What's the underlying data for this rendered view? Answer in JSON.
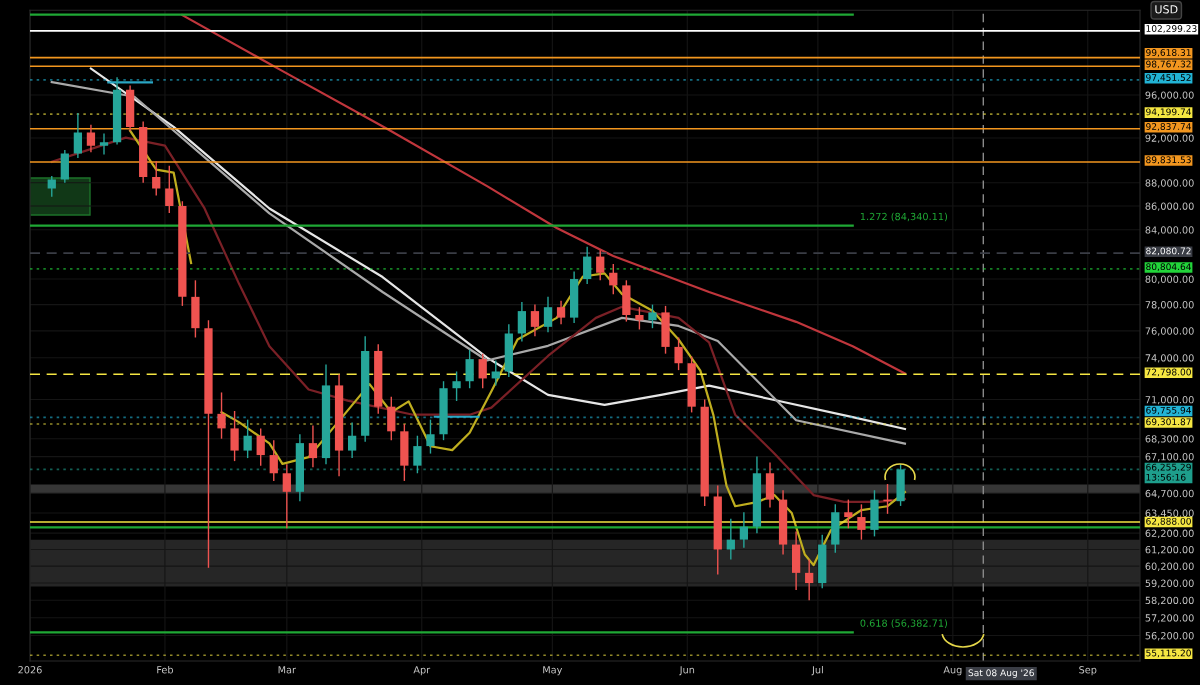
{
  "chart_data": {
    "type": "candlestick",
    "x": [
      "2026-01-06",
      "2026-01-09",
      "2026-01-12",
      "2026-01-15",
      "2026-01-18",
      "2026-01-21",
      "2026-01-24",
      "2026-01-27",
      "2026-01-30",
      "2026-02-02",
      "2026-02-05",
      "2026-02-08",
      "2026-02-11",
      "2026-02-14",
      "2026-02-17",
      "2026-02-20",
      "2026-02-23",
      "2026-02-26",
      "2026-03-01",
      "2026-03-04",
      "2026-03-07",
      "2026-03-10",
      "2026-03-13",
      "2026-03-16",
      "2026-03-19",
      "2026-03-22",
      "2026-03-25",
      "2026-03-28",
      "2026-03-31",
      "2026-04-03",
      "2026-04-06",
      "2026-04-09",
      "2026-04-12",
      "2026-04-15",
      "2026-04-18",
      "2026-04-21",
      "2026-04-24",
      "2026-04-27",
      "2026-04-30",
      "2026-05-03",
      "2026-05-06",
      "2026-05-09",
      "2026-05-12",
      "2026-05-15",
      "2026-05-18",
      "2026-05-21",
      "2026-05-24",
      "2026-05-27",
      "2026-05-30",
      "2026-06-02",
      "2026-06-05",
      "2026-06-08",
      "2026-06-11",
      "2026-06-14",
      "2026-06-17",
      "2026-06-20",
      "2026-06-23",
      "2026-06-26",
      "2026-06-29",
      "2026-07-02",
      "2026-07-05",
      "2026-07-08",
      "2026-07-11",
      "2026-07-14",
      "2026-07-17",
      "2026-07-20"
    ],
    "ohlc": [
      [
        87500,
        88600,
        86800,
        88300
      ],
      [
        88300,
        90900,
        88000,
        90600
      ],
      [
        90600,
        94300,
        90200,
        92500
      ],
      [
        92500,
        93200,
        90700,
        91300
      ],
      [
        91300,
        92400,
        90500,
        91600
      ],
      [
        91600,
        97700,
        91400,
        96500
      ],
      [
        96500,
        96900,
        92600,
        93000
      ],
      [
        93000,
        93500,
        88000,
        88500
      ],
      [
        88500,
        89900,
        86900,
        87500
      ],
      [
        87500,
        89500,
        85400,
        86000
      ],
      [
        86000,
        86400,
        77900,
        78600
      ],
      [
        78600,
        79900,
        75500,
        76200
      ],
      [
        76200,
        76800,
        60100,
        70000
      ],
      [
        70000,
        71500,
        68300,
        69000
      ],
      [
        69000,
        70200,
        66800,
        67500
      ],
      [
        67500,
        69600,
        67000,
        68500
      ],
      [
        68500,
        69000,
        66500,
        67200
      ],
      [
        67200,
        68200,
        65500,
        66000
      ],
      [
        66000,
        66600,
        62500,
        64800
      ],
      [
        64800,
        68600,
        64200,
        68000
      ],
      [
        68000,
        69200,
        66400,
        67000
      ],
      [
        67000,
        73500,
        66600,
        72000
      ],
      [
        72000,
        72800,
        65800,
        67500
      ],
      [
        67500,
        69400,
        67000,
        68500
      ],
      [
        68500,
        75600,
        68100,
        74500
      ],
      [
        74500,
        75000,
        70000,
        70500
      ],
      [
        70500,
        71200,
        68200,
        68800
      ],
      [
        68800,
        69300,
        65500,
        66500
      ],
      [
        66500,
        68500,
        66000,
        67800
      ],
      [
        67800,
        69600,
        67300,
        68600
      ],
      [
        68600,
        72300,
        68200,
        71800
      ],
      [
        71800,
        73000,
        70900,
        72300
      ],
      [
        72300,
        74600,
        71800,
        73900
      ],
      [
        73900,
        74300,
        71800,
        72500
      ],
      [
        72500,
        73800,
        72000,
        73000
      ],
      [
        73000,
        76500,
        72600,
        75800
      ],
      [
        75800,
        78200,
        75200,
        77500
      ],
      [
        77500,
        78000,
        75600,
        76300
      ],
      [
        76300,
        78600,
        75900,
        77800
      ],
      [
        77800,
        78300,
        76500,
        77000
      ],
      [
        77000,
        80600,
        76600,
        80000
      ],
      [
        80000,
        82600,
        79600,
        81800
      ],
      [
        81800,
        82300,
        79900,
        80500
      ],
      [
        80500,
        81200,
        78800,
        79500
      ],
      [
        79500,
        79900,
        76700,
        77200
      ],
      [
        77200,
        77800,
        76100,
        76800
      ],
      [
        76800,
        78000,
        76200,
        77400
      ],
      [
        77400,
        77900,
        74300,
        74800
      ],
      [
        74800,
        75500,
        73100,
        73600
      ],
      [
        73600,
        74100,
        70100,
        70500
      ],
      [
        70500,
        71000,
        63900,
        64500
      ],
      [
        64500,
        65200,
        59700,
        61200
      ],
      [
        61200,
        63100,
        60600,
        61800
      ],
      [
        61800,
        63500,
        61300,
        62600
      ],
      [
        62600,
        67100,
        62200,
        66000
      ],
      [
        66000,
        66700,
        63800,
        64300
      ],
      [
        64300,
        64900,
        60900,
        61500
      ],
      [
        61500,
        62300,
        58800,
        59800
      ],
      [
        59800,
        60600,
        58200,
        59200
      ],
      [
        59200,
        62100,
        58900,
        61500
      ],
      [
        61500,
        64000,
        61000,
        63500
      ],
      [
        63500,
        64300,
        62500,
        63200
      ],
      [
        63200,
        64000,
        61800,
        62400
      ],
      [
        62400,
        64900,
        62000,
        64300
      ],
      [
        64300,
        65300,
        63400,
        64200
      ],
      [
        64200,
        66600,
        63900,
        66255
      ]
    ],
    "series": [
      {
        "type": "line",
        "color": "#c0363c",
        "x": [
          "2026-02-05",
          "2026-02-27",
          "2026-03-24",
          "2026-04-16",
          "2026-05-02",
          "2026-05-15",
          "2026-06-06",
          "2026-06-26",
          "2026-07-09",
          "2026-07-21"
        ],
        "values": [
          103900,
          98540,
          92840,
          87710,
          84150,
          81840,
          78980,
          76680,
          74850,
          72850
        ]
      },
      {
        "type": "line",
        "color": "#e6e6e6",
        "x": [
          "2026-01-15",
          "2026-02-03",
          "2026-02-25",
          "2026-03-23",
          "2026-04-16",
          "2026-04-30",
          "2026-05-13",
          "2026-05-26",
          "2026-06-06",
          "2026-06-21",
          "2026-07-09",
          "2026-07-21"
        ],
        "values": [
          98540,
          93020,
          85790,
          80160,
          74010,
          71330,
          70620,
          71330,
          71980,
          70970,
          69770,
          68960
        ]
      },
      {
        "type": "line",
        "color": "#a9a9a9",
        "x": [
          "2026-01-06",
          "2026-01-25",
          "2026-02-25",
          "2026-03-23",
          "2026-04-16",
          "2026-04-30",
          "2026-05-17",
          "2026-05-30",
          "2026-06-08",
          "2026-06-26",
          "2026-07-21"
        ],
        "values": [
          97230,
          95830,
          85380,
          78980,
          73800,
          74880,
          76980,
          76370,
          75240,
          69560,
          67970
        ]
      },
      {
        "type": "line",
        "color": "#7a2026",
        "x": [
          "2026-01-06",
          "2026-01-23",
          "2026-02-01",
          "2026-02-10",
          "2026-02-18",
          "2026-02-25",
          "2026-03-06",
          "2026-03-15",
          "2026-03-30",
          "2026-04-12",
          "2026-04-17",
          "2026-04-30",
          "2026-05-11",
          "2026-05-17",
          "2026-05-30",
          "2026-06-06",
          "2026-06-12",
          "2026-06-21",
          "2026-06-30",
          "2026-07-07",
          "2026-07-15",
          "2026-07-21"
        ],
        "values": [
          89840,
          92030,
          91300,
          85870,
          79640,
          74850,
          71710,
          70920,
          69940,
          69940,
          70430,
          74130,
          76980,
          77830,
          76980,
          75140,
          69940,
          67310,
          64590,
          64160,
          64160,
          64340
        ]
      },
      {
        "type": "line",
        "color": "#bfae1f",
        "x": [
          "2026-01-24",
          "2026-01-30",
          "2026-02-03",
          "2026-02-07",
          "2026-02-11",
          "2026-02-14",
          "2026-02-18",
          "2026-02-25",
          "2026-02-28",
          "2026-03-06",
          "2026-03-10",
          "2026-03-20",
          "2026-03-25",
          "2026-03-29",
          "2026-04-03",
          "2026-04-08",
          "2026-04-12",
          "2026-04-17",
          "2026-04-23",
          "2026-05-02",
          "2026-05-08",
          "2026-05-13",
          "2026-05-17",
          "2026-05-24",
          "2026-05-30",
          "2026-06-04",
          "2026-06-07",
          "2026-06-10",
          "2026-06-12",
          "2026-06-17",
          "2026-06-21",
          "2026-06-25",
          "2026-06-28",
          "2026-06-30",
          "2026-07-04",
          "2026-07-11",
          "2026-07-17",
          "2026-07-21"
        ],
        "values": [
          92660,
          89160,
          88900,
          81280,
          null,
          70110,
          69430,
          67980,
          66620,
          67060,
          68440,
          72090,
          70110,
          70870,
          67790,
          67530,
          68700,
          71580,
          75350,
          76980,
          80200,
          80450,
          78830,
          77520,
          75350,
          73060,
          69910,
          65200,
          63880,
          64140,
          64590,
          63450,
          60900,
          60260,
          62390,
          63640,
          63880,
          64780
        ]
      },
      {
        "type": "line",
        "color": "#1fa835",
        "x": [
          "2026-01-01",
          "2026-07-09"
        ],
        "values": [
          103950,
          103950
        ]
      },
      {
        "type": "line",
        "color": "#1fa835",
        "x": [
          "2026-01-01",
          "2026-07-09"
        ],
        "values": [
          84340.11,
          84340.11
        ]
      },
      {
        "type": "line",
        "color": "#1fa835",
        "x": [
          "2026-01-01",
          "2026-07-09"
        ],
        "values": [
          56382.71,
          56382.71
        ]
      },
      {
        "type": "line",
        "color": "#1fa835",
        "x": [
          "2026-01-01",
          "2026-09-13"
        ],
        "values": [
          62560,
          62560
        ]
      },
      {
        "type": "line",
        "color": "#2aa6c4",
        "x": [
          "2026-01-19",
          "2026-01-29"
        ],
        "values": [
          97200,
          97200
        ]
      },
      {
        "type": "line",
        "color": "#2aa6c4",
        "x": [
          "2026-04-04",
          "2026-04-14"
        ],
        "values": [
          69800,
          69800
        ]
      }
    ],
    "xlim": [
      "2026-01-01",
      "2026-09-13"
    ],
    "xticks": [
      {
        "value": "2026-01-01",
        "label": "2026"
      },
      {
        "value": "2026-02-01",
        "label": "Feb"
      },
      {
        "value": "2026-03-01",
        "label": "Mar"
      },
      {
        "value": "2026-04-01",
        "label": "Apr"
      },
      {
        "value": "2026-05-01",
        "label": "May"
      },
      {
        "value": "2026-06-01",
        "label": "Jun"
      },
      {
        "value": "2026-07-01",
        "label": "Jul"
      },
      {
        "value": "2026-08-01",
        "label": "Aug"
      },
      {
        "value": "2026-09-01",
        "label": "Sep"
      }
    ],
    "ylim": [
      54800,
      104400
    ],
    "log": true,
    "yticks": [
      {
        "value": 96000,
        "label": "96,000.00"
      },
      {
        "value": 92000,
        "label": "92,000.00"
      },
      {
        "value": 88000,
        "label": "88,000.00"
      },
      {
        "value": 86000,
        "label": "86,000.00"
      },
      {
        "value": 84000,
        "label": "84,000.00"
      },
      {
        "value": 80000,
        "label": "80,000.00"
      },
      {
        "value": 78000,
        "label": "78,000.00"
      },
      {
        "value": 76000,
        "label": "76,000.00"
      },
      {
        "value": 74000,
        "label": "74,000.00"
      },
      {
        "value": 71000,
        "label": "71,000.00"
      },
      {
        "value": 68300,
        "label": "68,300.00"
      },
      {
        "value": 67100,
        "label": "67,100.00"
      },
      {
        "value": 64700,
        "label": "64,700.00"
      },
      {
        "value": 63450,
        "label": "63,450.00"
      },
      {
        "value": 62200,
        "label": "62,200.00"
      },
      {
        "value": 61200,
        "label": "61,200.00"
      },
      {
        "value": 60200,
        "label": "60,200.00"
      },
      {
        "value": 59200,
        "label": "59,200.00"
      },
      {
        "value": 58200,
        "label": "58,200.00"
      },
      {
        "value": 57200,
        "label": "57,200.00"
      },
      {
        "value": 56200,
        "label": "56,200.00"
      }
    ],
    "ref_lines": [
      {
        "axis": "y",
        "value": 102299.23,
        "label": "102,299.23",
        "color": "#ffffff",
        "line_style": "solid"
      },
      {
        "axis": "y",
        "value": 99618.31,
        "label": "99,618.31",
        "color": "#f2961f",
        "line_style": "solid"
      },
      {
        "axis": "y",
        "value": 98767.32,
        "label": "98,767.32",
        "color": "#f2961f",
        "line_style": "solid"
      },
      {
        "axis": "y",
        "value": 97451.52,
        "label": "97,451.52",
        "color": "#22b4d6",
        "line_style": "dotted"
      },
      {
        "axis": "y",
        "value": 94199.74,
        "label": "94,199.74",
        "color": "#f5e642",
        "line_style": "dotted"
      },
      {
        "axis": "y",
        "value": 92837.74,
        "label": "92,837.74",
        "color": "#f2961f",
        "line_style": "solid"
      },
      {
        "axis": "y",
        "value": 89831.53,
        "label": "89,831.53",
        "color": "#f2961f",
        "line_style": "solid"
      },
      {
        "axis": "y",
        "value": 82080.72,
        "label": "82,080.72",
        "color": "#3a3d45",
        "line_style": "dashed"
      },
      {
        "axis": "y",
        "value": 80804.64,
        "label": "80,804.64",
        "color": "#22d43a",
        "line_style": "dotted"
      },
      {
        "axis": "y",
        "value": 72798,
        "label": "72,798.00",
        "color": "#f5e642",
        "line_style": "dashed"
      },
      {
        "axis": "y",
        "value": 69755.94,
        "label": "69,755.94",
        "color": "#22b4d6",
        "line_style": "dotted"
      },
      {
        "axis": "y",
        "value": 69301.87,
        "label": "69,301.87",
        "color": "#f5e642",
        "line_style": "dotted"
      },
      {
        "axis": "y",
        "value": 66255.29,
        "label": "66,255.29\n13:56:16",
        "color": "#1e9e8c",
        "line_style": "dotted"
      },
      {
        "axis": "y",
        "value": 62888,
        "label": "62,888.00",
        "color": "#f5e642",
        "line_style": "solid"
      },
      {
        "axis": "y",
        "value": 55115.2,
        "label": "55,115.20",
        "color": "#f5e642",
        "line_style": "dotted"
      },
      {
        "axis": "x",
        "value": "2026-08-08",
        "label": "Sat 08 Aug '26",
        "color": "#8a8a8a",
        "line_style": "dashed"
      }
    ],
    "bands": [
      {
        "axis": "y",
        "from": 64720,
        "to": 65270,
        "color": "#3c3c3c"
      },
      {
        "axis": "y",
        "from": 59000,
        "to": 61790,
        "color": "#2a2a2a"
      }
    ],
    "annotations": [
      "USD",
      {
        "text": "1.272 (84,340.11)",
        "x": "2026-07-10",
        "y": 84340.11
      },
      {
        "text": "0.618 (56,382.71)",
        "x": "2026-07-10",
        "y": 56382.71
      }
    ],
    "grid": true
  }
}
